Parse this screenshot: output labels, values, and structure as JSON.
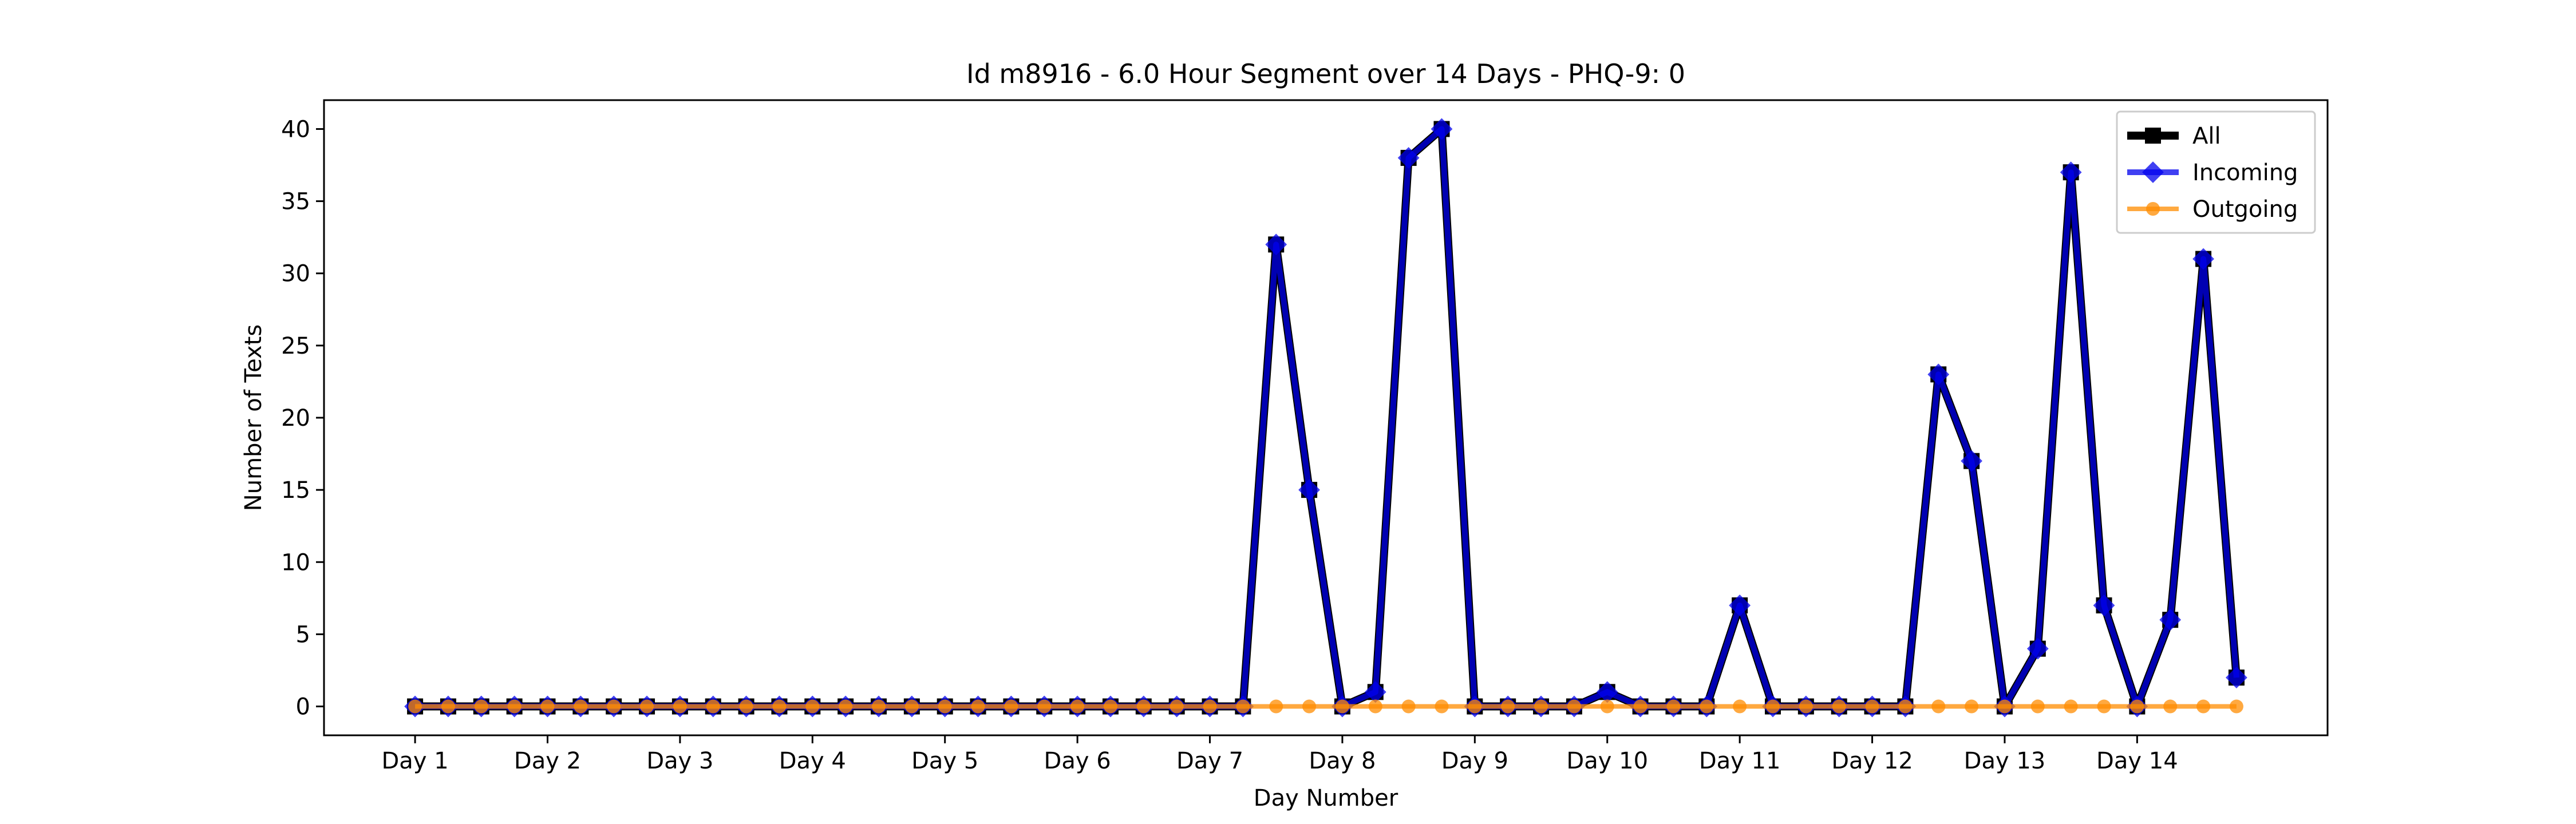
{
  "chart_data": {
    "type": "line",
    "title": "Id m8916 - 6.0 Hour Segment over 14 Days - PHQ-9: 0",
    "xlabel": "Day Number",
    "ylabel": "Number of Texts",
    "ylim": [
      -2,
      42
    ],
    "yticks": [
      0,
      5,
      10,
      15,
      20,
      25,
      30,
      35,
      40
    ],
    "xticks": [
      "Day 1",
      "Day 2",
      "Day 3",
      "Day 4",
      "Day 5",
      "Day 6",
      "Day 7",
      "Day 8",
      "Day 9",
      "Day 10",
      "Day 11",
      "Day 12",
      "Day 13",
      "Day 14"
    ],
    "points_per_day": 4,
    "grid": false,
    "legend_position": "top-right",
    "series": [
      {
        "name": "All",
        "color": "#000000",
        "marker": "square",
        "values": [
          0,
          0,
          0,
          0,
          0,
          0,
          0,
          0,
          0,
          0,
          0,
          0,
          0,
          0,
          0,
          0,
          0,
          0,
          0,
          0,
          0,
          0,
          0,
          0,
          0,
          0,
          32,
          15,
          0,
          1,
          38,
          40,
          0,
          0,
          0,
          0,
          1,
          0,
          0,
          0,
          7,
          0,
          0,
          0,
          0,
          0,
          23,
          17,
          0,
          4,
          37,
          7,
          0,
          6,
          31,
          2
        ]
      },
      {
        "name": "Incoming",
        "color": "#0000ee",
        "marker": "diamond",
        "values": [
          0,
          0,
          0,
          0,
          0,
          0,
          0,
          0,
          0,
          0,
          0,
          0,
          0,
          0,
          0,
          0,
          0,
          0,
          0,
          0,
          0,
          0,
          0,
          0,
          0,
          0,
          32,
          15,
          0,
          1,
          38,
          40,
          0,
          0,
          0,
          0,
          1,
          0,
          0,
          0,
          7,
          0,
          0,
          0,
          0,
          0,
          23,
          17,
          0,
          4,
          37,
          7,
          0,
          6,
          31,
          2
        ]
      },
      {
        "name": "Outgoing",
        "color": "#ff8c00",
        "marker": "circle",
        "values": [
          0,
          0,
          0,
          0,
          0,
          0,
          0,
          0,
          0,
          0,
          0,
          0,
          0,
          0,
          0,
          0,
          0,
          0,
          0,
          0,
          0,
          0,
          0,
          0,
          0,
          0,
          0,
          0,
          0,
          0,
          0,
          0,
          0,
          0,
          0,
          0,
          0,
          0,
          0,
          0,
          0,
          0,
          0,
          0,
          0,
          0,
          0,
          0,
          0,
          0,
          0,
          0,
          0,
          0,
          0,
          0
        ]
      }
    ]
  }
}
